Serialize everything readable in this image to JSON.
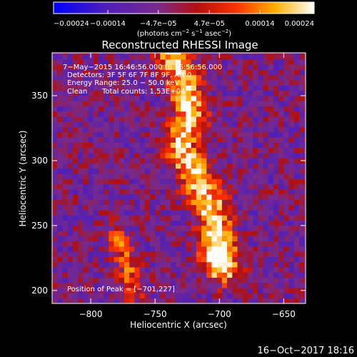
{
  "chart_data": {
    "type": "heatmap",
    "title": "Reconstructed RHESSI Image",
    "xlabel": "Heliocentric X (arcsec)",
    "ylabel": "Heliocentric Y (arcsec)",
    "xlim": [
      -830,
      -633
    ],
    "ylim": [
      190,
      383
    ],
    "x_ticks": [
      -800,
      -750,
      -700,
      -650
    ],
    "x_tick_labels": [
      "−800",
      "−750",
      "−700",
      "−650"
    ],
    "y_ticks": [
      200,
      250,
      300,
      350
    ],
    "y_tick_labels": [
      "200",
      "250",
      "300",
      "350"
    ],
    "colorbar": {
      "min": -0.00024,
      "max": 0.00024,
      "colormap": "blue-purple-red-orange-yellow-white",
      "tick_values": [
        -0.00024,
        -0.00014,
        -4.7e-05,
        4.7e-05,
        0.00014,
        0.00024
      ],
      "tick_labels": [
        "−0.00024",
        "−0.00014",
        "−4.7e−05",
        "4.7e−05",
        "0.00014",
        "0.00024"
      ],
      "units_prefix": "(photons cm",
      "units_exp1": "−2",
      "units_mid": " s",
      "units_exp2": "−1",
      "units_mid2": " asec",
      "units_exp3": "−2",
      "units_suffix": ")"
    },
    "annotations": {
      "time_range": "7−May−2015 16:46:56.000 to 16:56:56.000",
      "detectors": "Detectors: 3F 5F 6F 7F 8F 9F, Att 0",
      "energy": "Energy Range: 25.0 − 50.0 keV",
      "clean": "Clean",
      "counts": "Total counts: 1.53E+04",
      "peak": "Position of Peak = [−701,227]"
    },
    "peak_position": [
      -701,
      227
    ],
    "emission_ridge": [
      {
        "x": -735,
        "y": 383
      },
      {
        "x": -727,
        "y": 360
      },
      {
        "x": -723,
        "y": 335
      },
      {
        "x": -730,
        "y": 312
      },
      {
        "x": -725,
        "y": 300
      },
      {
        "x": -716,
        "y": 283
      },
      {
        "x": -708,
        "y": 268
      },
      {
        "x": -703,
        "y": 250
      },
      {
        "x": -700,
        "y": 235
      },
      {
        "x": -701,
        "y": 227
      },
      {
        "x": -697,
        "y": 218
      }
    ],
    "secondary_ridge": [
      {
        "x": -780,
        "y": 243
      },
      {
        "x": -775,
        "y": 230
      },
      {
        "x": -770,
        "y": 215
      },
      {
        "x": -766,
        "y": 200
      }
    ]
  },
  "footer": {
    "date": "16−Oct−2017 18:16"
  }
}
